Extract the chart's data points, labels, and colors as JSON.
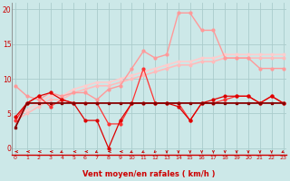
{
  "xlabel": "Vent moyen/en rafales ( km/h )",
  "x": [
    0,
    1,
    2,
    3,
    4,
    5,
    6,
    7,
    8,
    9,
    10,
    11,
    12,
    13,
    14,
    15,
    16,
    17,
    18,
    19,
    20,
    21,
    22,
    23
  ],
  "line_dark_red": [
    3,
    6.5,
    6.5,
    6.5,
    6.5,
    6.5,
    6.5,
    6.5,
    6.5,
    6.5,
    6.5,
    6.5,
    6.5,
    6.5,
    6.5,
    6.5,
    6.5,
    6.5,
    6.5,
    6.5,
    6.5,
    6.5,
    6.5,
    6.5
  ],
  "line_med_red": [
    4,
    6.5,
    7.5,
    6,
    7,
    6.5,
    6.5,
    6.5,
    3.5,
    3.5,
    6.5,
    11.5,
    6.5,
    6.5,
    6.5,
    4,
    6.5,
    6.5,
    7,
    7.5,
    7.5,
    6.5,
    7.5,
    6.5
  ],
  "line_bright_red": [
    4.5,
    6.5,
    7.5,
    8,
    7,
    6.5,
    4,
    4,
    0,
    4,
    6.5,
    6.5,
    6.5,
    6.5,
    6,
    4,
    6.5,
    7,
    7.5,
    7.5,
    7.5,
    6.5,
    7.5,
    6.5
  ],
  "line_light_pink": [
    9,
    7.5,
    7,
    8,
    7.5,
    8,
    8,
    7,
    8.5,
    9,
    11.5,
    14,
    13,
    13.5,
    19.5,
    19.5,
    17,
    17,
    13,
    13,
    13,
    11.5,
    11.5,
    11.5
  ],
  "line_pale_pink": [
    4,
    5,
    6,
    7,
    7,
    8,
    8.5,
    9,
    9,
    9.5,
    10,
    10.5,
    11,
    11.5,
    12,
    12,
    12.5,
    12.5,
    13,
    13,
    13,
    13,
    13,
    13
  ],
  "line_pale2_pink": [
    4.5,
    5.5,
    6.5,
    7.5,
    7.5,
    8.5,
    9,
    9.5,
    9.5,
    10,
    10.5,
    11,
    11.5,
    12,
    12.5,
    12.5,
    13,
    13,
    13.5,
    13.5,
    13.5,
    13.5,
    13.5,
    13.5
  ],
  "bg_color": "#cce8e8",
  "grid_color": "#aacccc",
  "ylim": [
    -1,
    21
  ],
  "yticks": [
    0,
    5,
    10,
    15,
    20
  ],
  "xticks": [
    0,
    1,
    2,
    3,
    4,
    5,
    6,
    7,
    8,
    9,
    10,
    11,
    12,
    13,
    14,
    15,
    16,
    17,
    18,
    19,
    20,
    21,
    22,
    23
  ],
  "arrow_angles": [
    270,
    270,
    270,
    270,
    225,
    270,
    270,
    225,
    270,
    270,
    225,
    225,
    210,
    180,
    180,
    180,
    180,
    180,
    180,
    180,
    180,
    180,
    180,
    225
  ]
}
